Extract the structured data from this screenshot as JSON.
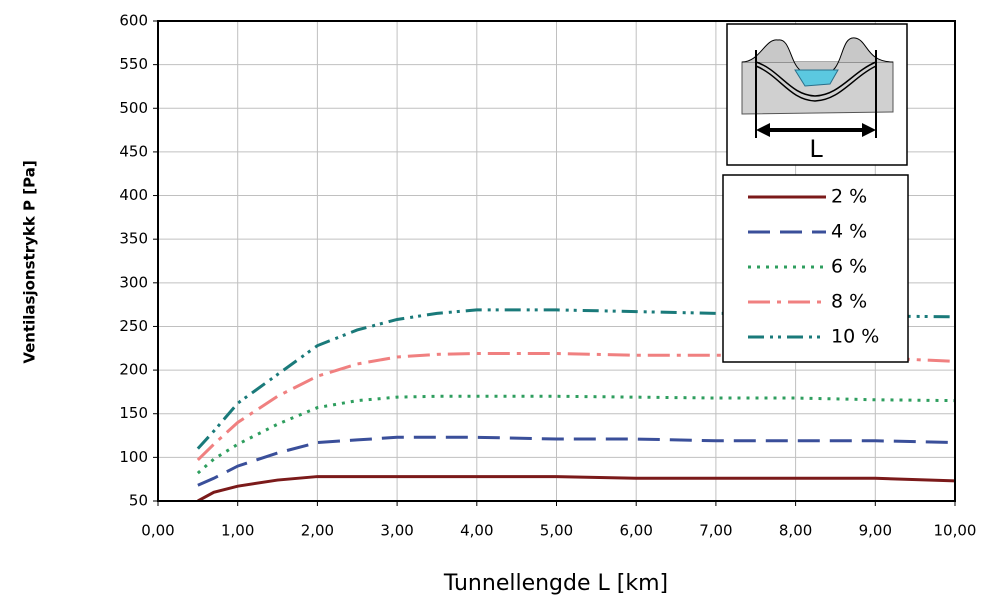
{
  "chart_data": {
    "type": "line",
    "x_label": "Tunnellengde L [km]",
    "y_label": "Ventilasjonstrykk P [Pa]",
    "annotation": "L",
    "x": [
      0.5,
      0.7,
      1,
      1.5,
      2,
      2.5,
      3,
      3.5,
      4,
      5,
      6,
      7,
      8,
      9,
      10
    ],
    "series": [
      {
        "name": "2 %",
        "color": "#7b1a1a",
        "values": [
          50,
          60,
          67,
          74,
          78,
          78,
          78,
          78,
          78,
          78,
          76,
          76,
          76,
          76,
          73
        ]
      },
      {
        "name": "4 %",
        "color": "#3a4f9a",
        "values": [
          68,
          76,
          90,
          105,
          117,
          120,
          123,
          123,
          123,
          121,
          121,
          119,
          119,
          119,
          117
        ]
      },
      {
        "name": "6 %",
        "color": "#2e9e5e",
        "values": [
          82,
          98,
          115,
          138,
          157,
          165,
          169,
          170,
          170,
          170,
          169,
          168,
          168,
          166,
          165
        ]
      },
      {
        "name": "8 %",
        "color": "#f08080",
        "values": [
          97,
          115,
          140,
          170,
          193,
          207,
          215,
          218,
          219,
          219,
          217,
          217,
          216,
          214,
          210
        ]
      },
      {
        "name": "10 %",
        "color": "#1a7a7a",
        "values": [
          110,
          130,
          162,
          195,
          228,
          246,
          258,
          265,
          269,
          269,
          267,
          265,
          264,
          262,
          261
        ]
      }
    ],
    "xlim": [
      0,
      10
    ],
    "xticks": [
      {
        "value": 0,
        "label": "0,00"
      },
      {
        "value": 1,
        "label": "1,00"
      },
      {
        "value": 2,
        "label": "2,00"
      },
      {
        "value": 3,
        "label": "3,00"
      },
      {
        "value": 4,
        "label": "4,00"
      },
      {
        "value": 5,
        "label": "5,00"
      },
      {
        "value": 6,
        "label": "6,00"
      },
      {
        "value": 7,
        "label": "7,00"
      },
      {
        "value": 8,
        "label": "8,00"
      },
      {
        "value": 9,
        "label": "9,00"
      },
      {
        "value": 10,
        "label": "10,00"
      }
    ],
    "ylim": [
      50,
      600
    ],
    "yticks": [
      50,
      100,
      150,
      200,
      250,
      300,
      350,
      400,
      450,
      500,
      550,
      600
    ],
    "grid": true
  }
}
